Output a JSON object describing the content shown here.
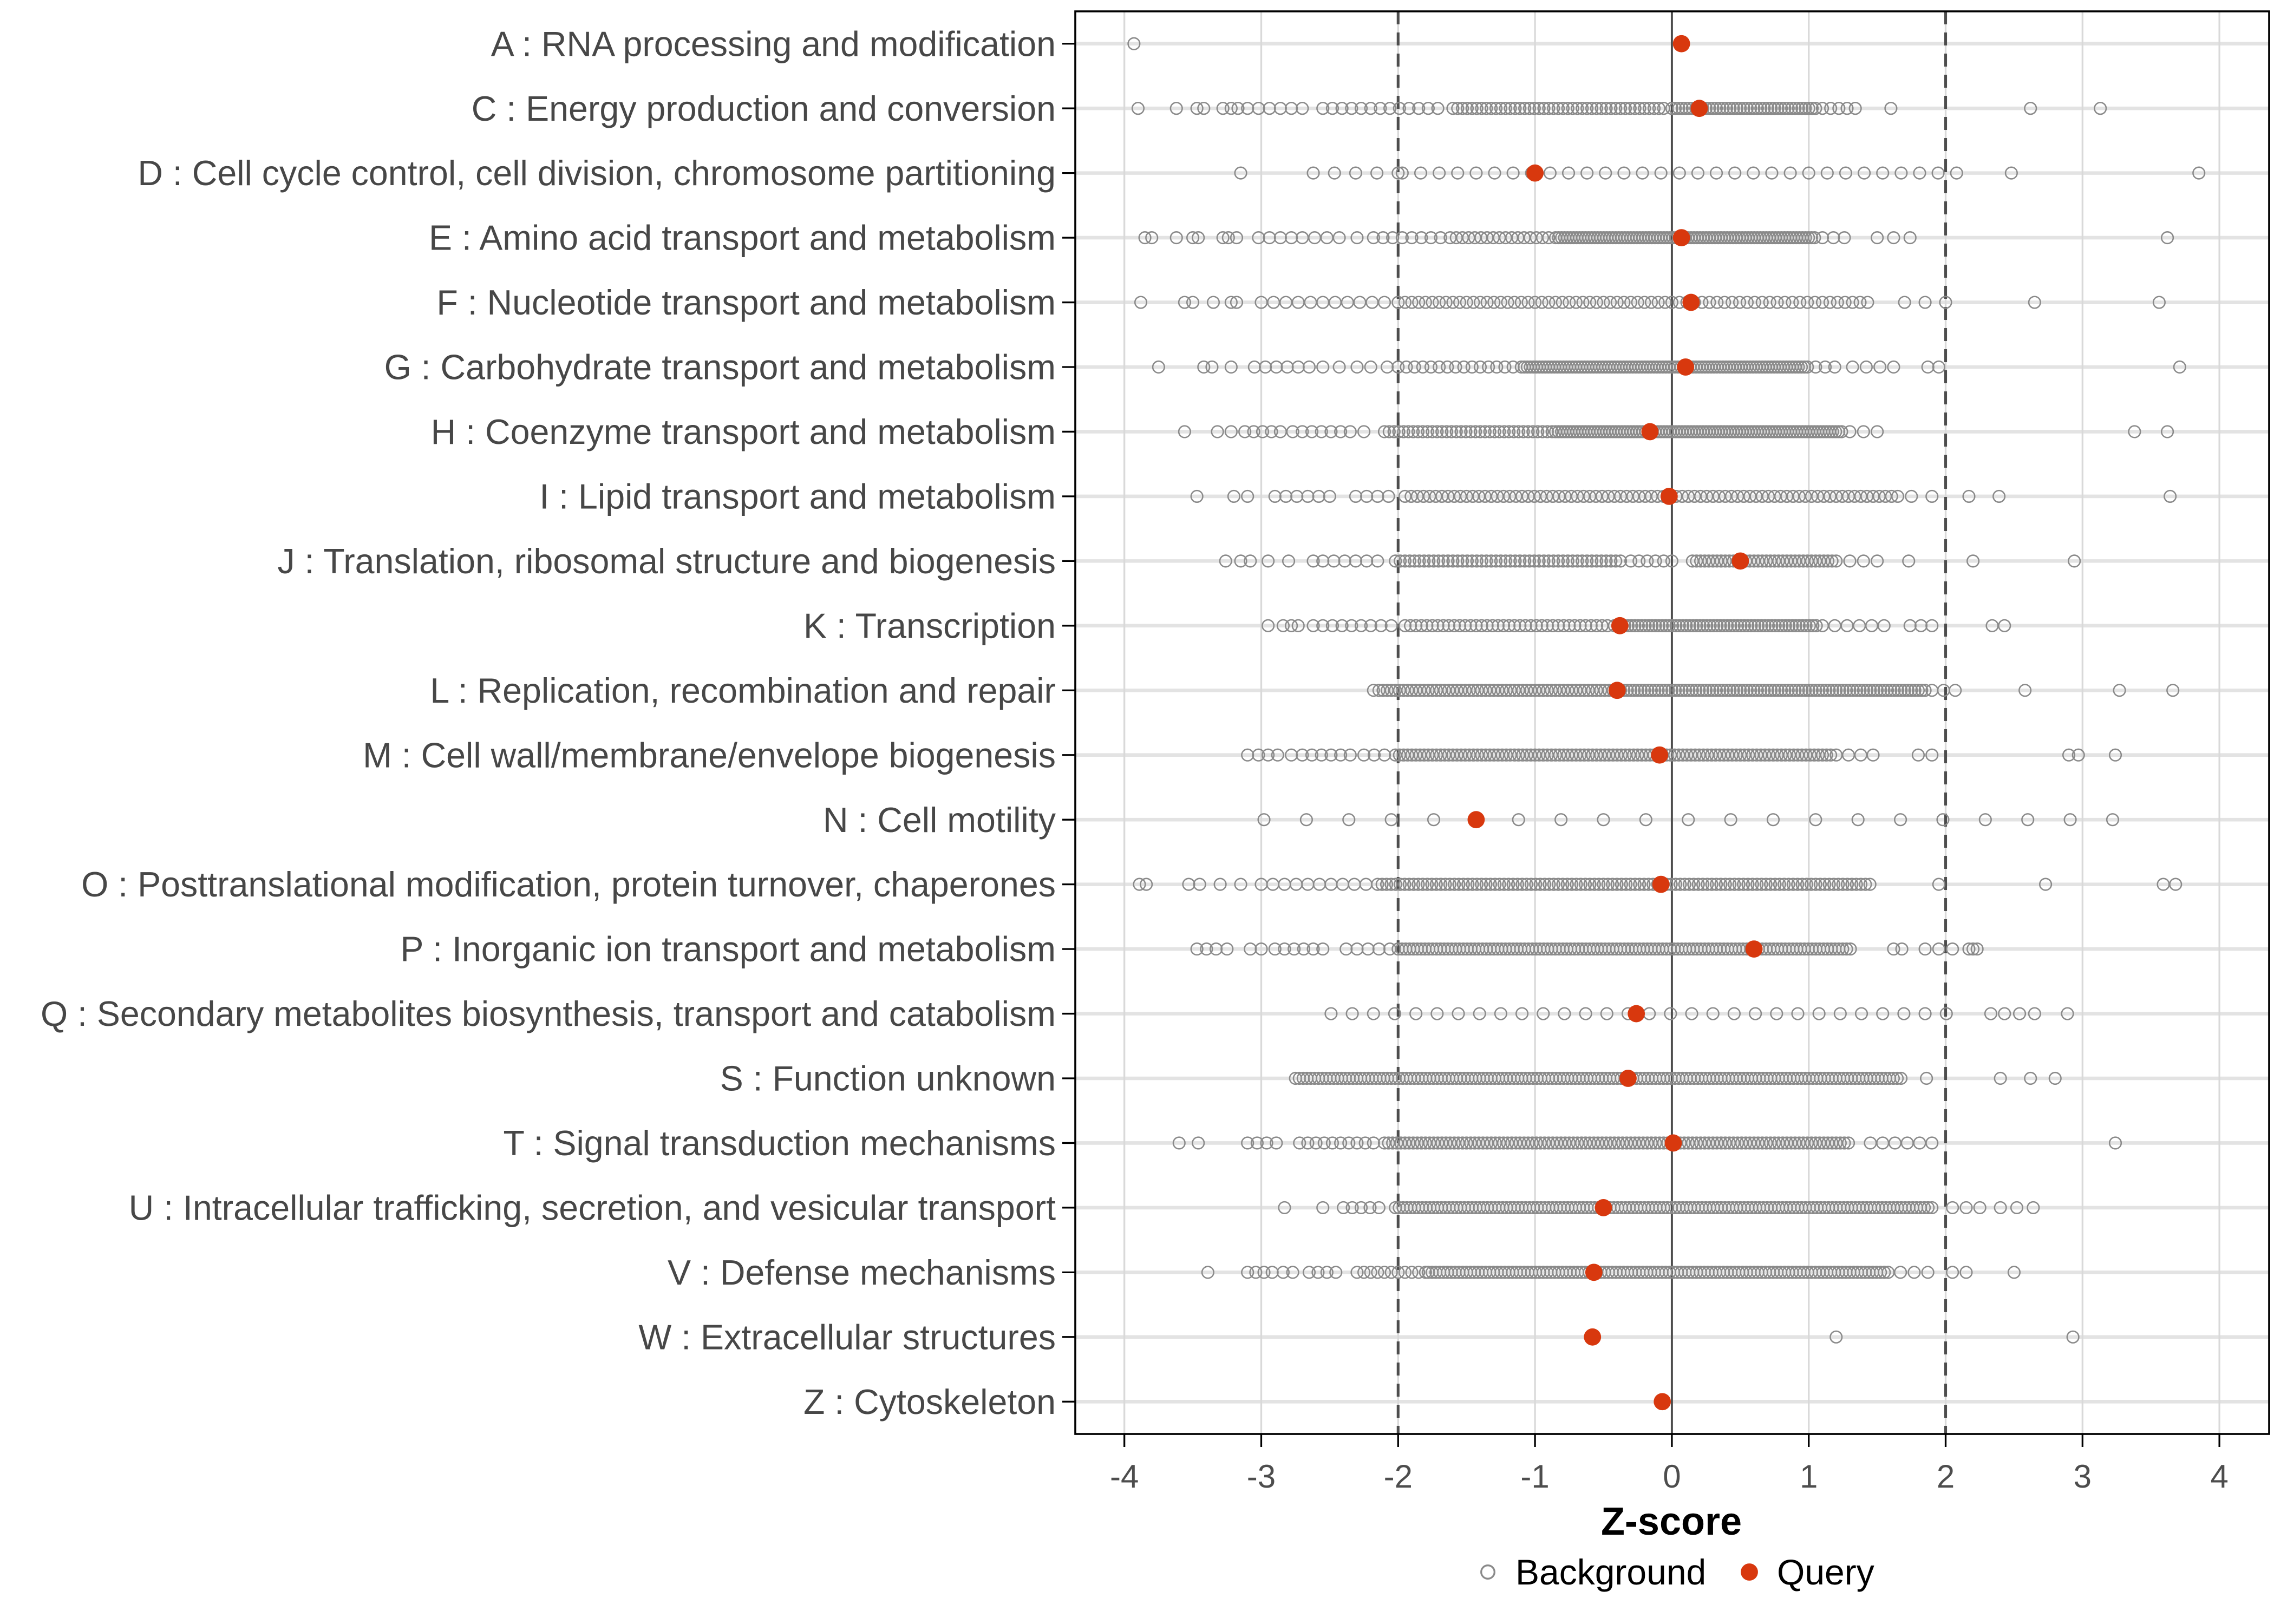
{
  "chart_data": {
    "type": "scatter",
    "subtype": "strip-dot-plot",
    "title": "",
    "xlabel": "Z-score",
    "x_ticks": [
      -4,
      -3,
      -2,
      -1,
      0,
      1,
      2,
      3,
      4
    ],
    "xlim": [
      -4.36,
      4.36
    ],
    "grid": "major-only",
    "guides": {
      "zero_line": 0,
      "dashed_lines": [
        -2,
        2
      ]
    },
    "legend": {
      "position": "bottom-center",
      "background_label": "Background",
      "query_label": "Query"
    },
    "colors": {
      "query": "#D8380E",
      "background_stroke": "#8A8A8A",
      "grid_major_h": "#E3E3E3",
      "grid_major_v": "#D9D9D9",
      "guide_dark": "#4D4D4D",
      "axis_text": "#4D4D4D",
      "axis_title": "#000000",
      "panel_border": "#000000"
    },
    "categories": [
      {
        "code": "A",
        "label": "A : RNA processing and modification",
        "query": 0.07,
        "bg_runs": [],
        "bg_points": [
          -3.93
        ]
      },
      {
        "code": "C",
        "label": "C : Energy production and conversion",
        "query": 0.2,
        "bg_runs": [
          [
            -3.1,
            -2.7,
            0.08
          ],
          [
            -2.55,
            -1.66,
            0.07
          ],
          [
            -1.6,
            -0.04,
            0.035
          ],
          [
            0.0,
            1.05,
            0.025
          ],
          [
            1.1,
            1.35,
            0.06
          ]
        ],
        "bg_points": [
          -3.9,
          -3.62,
          -3.47,
          -3.42,
          -3.28,
          -3.22,
          -3.17,
          1.6,
          2.62,
          3.13
        ]
      },
      {
        "code": "D",
        "label": "D : Cell cycle control, cell division, chromosome partitioning",
        "query": -1.0,
        "bg_runs": [
          [
            -2.62,
            -2.0,
            0.155
          ],
          [
            -1.97,
            2.08,
            0.135
          ]
        ],
        "bg_points": [
          -3.15,
          2.48,
          3.85
        ]
      },
      {
        "code": "E",
        "label": "E : Amino acid transport and metabolism",
        "query": 0.07,
        "bg_runs": [
          [
            -3.02,
            -2.78,
            0.08
          ],
          [
            -2.7,
            -2.42,
            0.09
          ],
          [
            -2.18,
            -1.68,
            0.07
          ],
          [
            -1.62,
            -0.9,
            0.045
          ],
          [
            -0.85,
            1.05,
            0.022
          ],
          [
            1.1,
            1.26,
            0.08
          ],
          [
            1.5,
            1.75,
            0.12
          ]
        ],
        "bg_points": [
          -3.85,
          -3.8,
          -3.62,
          -3.5,
          -3.46,
          -3.28,
          -3.24,
          -3.18,
          -2.3,
          3.62
        ]
      },
      {
        "code": "F",
        "label": "F : Nucleotide transport and metabolism",
        "query": 0.14,
        "bg_runs": [
          [
            -3.0,
            -2.05,
            0.09
          ],
          [
            -2.0,
            -0.05,
            0.05
          ],
          [
            0.0,
            1.45,
            0.055
          ],
          [
            1.7,
            2.0,
            0.15
          ]
        ],
        "bg_points": [
          -3.88,
          -3.56,
          -3.5,
          -3.35,
          -3.22,
          -3.18,
          2.65,
          3.56
        ]
      },
      {
        "code": "G",
        "label": "G : Carbohydrate transport and metabolism",
        "query": 0.1,
        "bg_runs": [
          [
            -3.05,
            -2.62,
            0.08
          ],
          [
            -2.55,
            -2.43,
            0.12
          ],
          [
            -2.2,
            -2.08,
            0.12
          ],
          [
            -2.0,
            -1.15,
            0.06
          ],
          [
            -1.1,
            1.0,
            0.022
          ],
          [
            1.05,
            1.25,
            0.07
          ],
          [
            1.32,
            1.7,
            0.1
          ],
          [
            1.87,
            1.95,
            0.08
          ]
        ],
        "bg_points": [
          -3.75,
          -3.42,
          -3.36,
          -3.22,
          -2.3,
          3.71
        ]
      },
      {
        "code": "H",
        "label": "H : Coenzyme transport and metabolism",
        "query": -0.16,
        "bg_runs": [
          [
            -3.12,
            -2.86,
            0.065
          ],
          [
            -2.77,
            -2.35,
            0.07
          ],
          [
            -2.1,
            -0.87,
            0.035
          ],
          [
            -0.85,
            1.25,
            0.022
          ],
          [
            1.3,
            1.5,
            0.1
          ]
        ],
        "bg_points": [
          -3.56,
          -3.32,
          -3.22,
          -2.25,
          3.38,
          3.62
        ]
      },
      {
        "code": "I",
        "label": "I : Lipid transport and metabolism",
        "query": -0.02,
        "bg_runs": [
          [
            -2.9,
            -2.43,
            0.08
          ],
          [
            -2.31,
            -2.0,
            0.08
          ],
          [
            -1.95,
            1.65,
            0.045
          ],
          [
            1.75,
            1.9,
            0.15
          ]
        ],
        "bg_points": [
          -3.47,
          -3.2,
          -3.1,
          2.17,
          2.39,
          3.64
        ]
      },
      {
        "code": "J",
        "label": "J : Translation, ribosomal structure and biogenesis",
        "query": 0.5,
        "bg_runs": [
          [
            -2.55,
            -2.08,
            0.08
          ],
          [
            -2.02,
            -0.35,
            0.035
          ],
          [
            -0.3,
            0.05,
            0.06
          ],
          [
            0.15,
            1.2,
            0.03
          ],
          [
            1.3,
            1.5,
            0.1
          ]
        ],
        "bg_points": [
          -3.26,
          -3.15,
          -3.08,
          -2.95,
          -2.8,
          -2.62,
          1.73,
          2.2,
          2.94
        ]
      },
      {
        "code": "K",
        "label": "K : Transcription",
        "query": -0.38,
        "bg_runs": [
          [
            -2.62,
            -2.27,
            0.07
          ],
          [
            -2.2,
            -2.05,
            0.075
          ],
          [
            -1.95,
            -0.45,
            0.04
          ],
          [
            -0.42,
            1.07,
            0.025
          ],
          [
            1.1,
            1.6,
            0.09
          ],
          [
            1.74,
            1.9,
            0.08
          ]
        ],
        "bg_points": [
          -2.95,
          -2.84,
          -2.78,
          -2.73,
          2.34,
          2.43
        ]
      },
      {
        "code": "L",
        "label": "L : Replication, recombination and repair",
        "query": -0.4,
        "bg_runs": [
          [
            -2.14,
            -0.42,
            0.03
          ],
          [
            -0.4,
            1.85,
            0.025
          ],
          [
            1.9,
            2.07,
            0.085
          ]
        ],
        "bg_points": [
          -2.18,
          2.58,
          3.27,
          3.66
        ]
      },
      {
        "code": "M",
        "label": "M : Cell wall/membrane/envelope biogenesis",
        "query": -0.09,
        "bg_runs": [
          [
            -2.7,
            -2.3,
            0.07
          ],
          [
            -2.25,
            -2.1,
            0.075
          ],
          [
            -2.02,
            1.18,
            0.03
          ],
          [
            1.2,
            1.55,
            0.09
          ],
          [
            1.8,
            1.9,
            0.1
          ]
        ],
        "bg_points": [
          -3.1,
          -3.02,
          -2.95,
          -2.88,
          -2.78,
          2.9,
          2.97,
          3.24
        ]
      },
      {
        "code": "N",
        "label": "N : Cell motility",
        "query": -1.43,
        "bg_runs": [],
        "bg_points": [
          -2.98,
          -2.67,
          -2.36,
          -2.05,
          -1.74,
          -1.12,
          -0.81,
          -0.5,
          -0.19,
          0.12,
          0.43,
          0.74,
          1.05,
          1.36,
          1.67,
          1.98,
          2.29,
          2.6,
          2.91,
          3.22
        ]
      },
      {
        "code": "O",
        "label": "O : Posttranslational modification, protein turnover, chaperones",
        "query": -0.08,
        "bg_runs": [
          [
            -3.0,
            -2.2,
            0.085
          ],
          [
            -2.15,
            1.45,
            0.033
          ]
        ],
        "bg_points": [
          -3.89,
          -3.84,
          -3.53,
          -3.45,
          -3.3,
          -3.15,
          1.95,
          2.73,
          3.59,
          3.68
        ]
      },
      {
        "code": "P",
        "label": "P : Inorganic ion transport and metabolism",
        "query": 0.6,
        "bg_runs": [
          [
            -2.9,
            -2.5,
            0.07
          ],
          [
            -2.38,
            -2.05,
            0.08
          ],
          [
            -2.0,
            1.33,
            0.028
          ],
          [
            1.85,
            2.06,
            0.1
          ]
        ],
        "bg_points": [
          -3.47,
          -3.4,
          -3.33,
          -3.25,
          -3.08,
          -3.0,
          1.62,
          1.68,
          2.17,
          2.2,
          2.23
        ]
      },
      {
        "code": "Q",
        "label": "Q : Secondary metabolites biosynthesis, transport and catabolism",
        "query": -0.26,
        "bg_runs": [
          [
            -2.49,
            2.1,
            0.155
          ]
        ],
        "bg_points": [
          2.33,
          2.43,
          2.54,
          2.65,
          2.89
        ]
      },
      {
        "code": "S",
        "label": "S : Function unknown",
        "query": -0.32,
        "bg_runs": [
          [
            -2.75,
            1.7,
            0.028
          ]
        ],
        "bg_points": [
          1.86,
          2.4,
          2.62,
          2.8
        ]
      },
      {
        "code": "T",
        "label": "T : Signal transduction mechanisms",
        "query": 0.01,
        "bg_runs": [
          [
            -3.1,
            -2.87,
            0.07
          ],
          [
            -2.72,
            -2.15,
            0.06
          ],
          [
            -2.1,
            1.3,
            0.03
          ],
          [
            1.45,
            1.9,
            0.09
          ]
        ],
        "bg_points": [
          -3.6,
          -3.46,
          3.24
        ]
      },
      {
        "code": "U",
        "label": "U : Intracellular trafficking, secretion, and vesicular transport",
        "query": -0.5,
        "bg_runs": [
          [
            -2.4,
            -2.08,
            0.065
          ],
          [
            -2.02,
            1.9,
            0.028
          ],
          [
            2.05,
            2.25,
            0.1
          ],
          [
            2.4,
            2.64,
            0.12
          ]
        ],
        "bg_points": [
          -2.83,
          -2.55
        ]
      },
      {
        "code": "V",
        "label": "V : Defense mechanisms",
        "query": -0.57,
        "bg_runs": [
          [
            -2.65,
            -2.45,
            0.065
          ],
          [
            -2.3,
            -1.8,
            0.05
          ],
          [
            -1.78,
            1.6,
            0.028
          ],
          [
            1.67,
            1.87,
            0.1
          ]
        ],
        "bg_points": [
          -3.39,
          -3.1,
          -3.04,
          -2.98,
          -2.92,
          -2.84,
          -2.77,
          2.05,
          2.15,
          2.5
        ]
      },
      {
        "code": "W",
        "label": "W : Extracellular structures",
        "query": -0.58,
        "bg_runs": [],
        "bg_points": [
          1.2,
          2.93
        ]
      },
      {
        "code": "Z",
        "label": "Z : Cytoskeleton",
        "query": -0.07,
        "bg_runs": [],
        "bg_points": []
      }
    ]
  }
}
